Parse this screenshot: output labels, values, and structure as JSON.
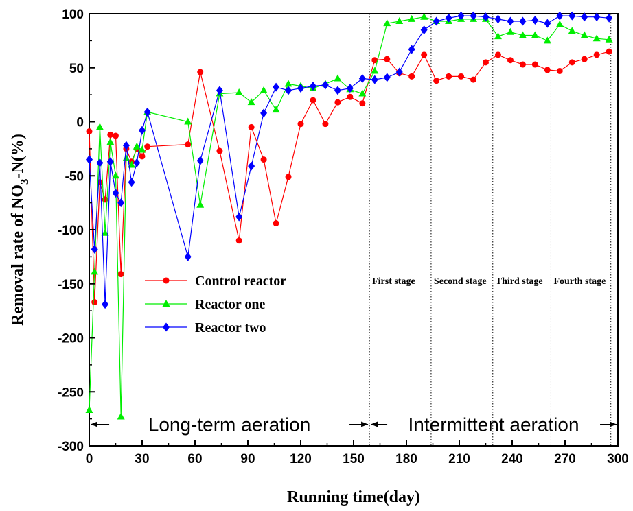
{
  "chart_data": {
    "type": "line",
    "xlabel": "Running time(day)",
    "ylabel_main": "Removal rate of NO",
    "ylabel_sub": "3",
    "ylabel_tail": "-N(%)",
    "xlim": [
      0,
      300
    ],
    "ylim": [
      -300,
      100
    ],
    "xticks": [
      0,
      30,
      60,
      90,
      120,
      150,
      180,
      210,
      240,
      270,
      300
    ],
    "yticks": [
      100,
      50,
      0,
      -50,
      -100,
      -150,
      -200,
      -250,
      -300
    ],
    "grid": false,
    "legend_position": "lower-left",
    "series": [
      {
        "name": "Control reactor",
        "color": "#ff0000",
        "marker": "circle",
        "x": [
          0,
          3,
          6,
          9,
          12,
          15,
          18,
          21,
          24,
          27,
          30,
          33,
          56,
          63,
          74,
          85,
          92,
          99,
          106,
          113,
          120,
          127,
          134,
          141,
          148,
          155,
          162,
          169,
          176,
          183,
          190,
          197,
          204,
          211,
          218,
          225,
          232,
          239,
          246,
          253,
          260,
          267,
          274,
          281,
          288,
          295
        ],
        "y": [
          -9,
          -167,
          -56,
          -72,
          -12,
          -13,
          -141,
          -25,
          -37,
          -25,
          -32,
          -23,
          -21,
          46,
          -27,
          -110,
          -5,
          -35,
          -94,
          -51,
          -2,
          20,
          -2,
          18,
          23,
          17,
          57,
          58,
          45,
          42,
          62,
          38,
          42,
          42,
          39,
          55,
          62,
          57,
          53,
          53,
          48,
          47,
          55,
          58,
          62,
          65
        ]
      },
      {
        "name": "Reactor one",
        "color": "#00ee00",
        "marker": "triangle",
        "x": [
          0,
          3,
          6,
          9,
          12,
          15,
          18,
          21,
          24,
          27,
          30,
          33,
          56,
          63,
          74,
          85,
          92,
          99,
          106,
          113,
          120,
          127,
          134,
          141,
          148,
          155,
          162,
          169,
          176,
          183,
          190,
          197,
          204,
          211,
          218,
          225,
          232,
          239,
          246,
          253,
          260,
          267,
          274,
          281,
          288,
          295
        ],
        "y": [
          -267,
          -139,
          -5,
          -103,
          -19,
          -50,
          -273,
          -34,
          -40,
          -23,
          -26,
          9,
          0,
          -77,
          26,
          27,
          18,
          29,
          11,
          35,
          33,
          31,
          35,
          40,
          30,
          26,
          47,
          91,
          93,
          95,
          97,
          93,
          93,
          95,
          95,
          95,
          79,
          83,
          80,
          80,
          75,
          90,
          84,
          80,
          77,
          76
        ]
      },
      {
        "name": "Reactor two",
        "color": "#0000ff",
        "marker": "diamond",
        "x": [
          0,
          3,
          6,
          9,
          12,
          15,
          18,
          21,
          24,
          27,
          30,
          33,
          56,
          63,
          74,
          85,
          92,
          99,
          106,
          113,
          120,
          127,
          134,
          141,
          148,
          155,
          162,
          169,
          176,
          183,
          190,
          197,
          204,
          211,
          218,
          225,
          232,
          239,
          246,
          253,
          260,
          267,
          274,
          281,
          288,
          295
        ],
        "y": [
          -35,
          -118,
          -38,
          -169,
          -37,
          -66,
          -75,
          -22,
          -56,
          -38,
          -8,
          9,
          -125,
          -36,
          29,
          -88,
          -41,
          8,
          32,
          29,
          31,
          33,
          34,
          29,
          31,
          40,
          39,
          41,
          46,
          67,
          85,
          93,
          96,
          98,
          98,
          97,
          95,
          93,
          93,
          94,
          91,
          98,
          98,
          97,
          97,
          96
        ]
      }
    ],
    "stage_dividers_x": [
      159,
      194,
      229,
      262,
      296
    ],
    "stage_labels": [
      "First stage",
      "Second stage",
      "Third stage",
      "Fourth stage"
    ],
    "region_labels": [
      "Long-term aeration",
      "Intermittent aeration"
    ],
    "region_boundary_x": 159
  }
}
